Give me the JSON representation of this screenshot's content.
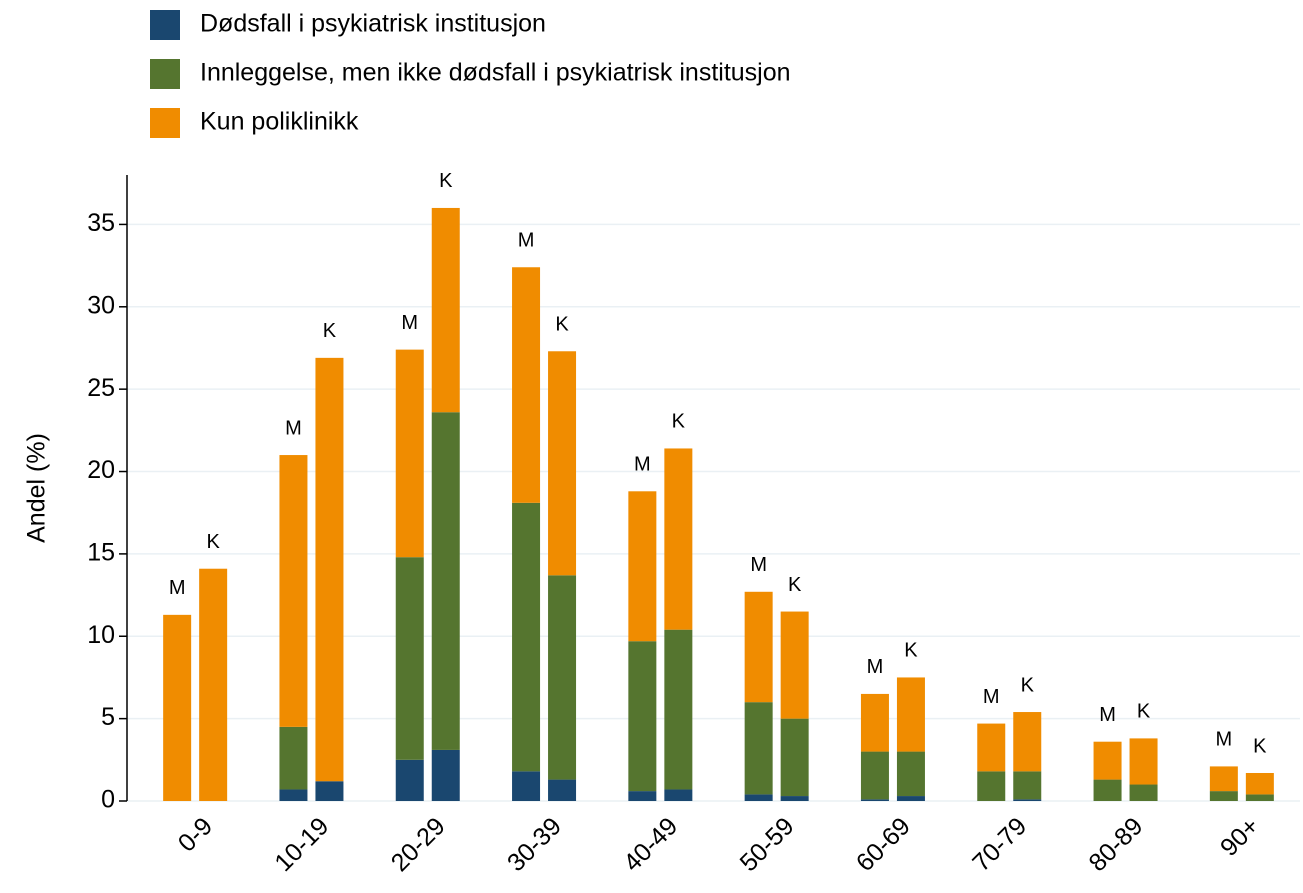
{
  "chart_data": {
    "type": "grouped_stacked_bar",
    "y_label": "Andel (%)",
    "categories": [
      "0-9",
      "10-19",
      "20-29",
      "30-39",
      "40-49",
      "50-59",
      "60-69",
      "70-79",
      "80-89",
      "90+"
    ],
    "groups": [
      "M",
      "K"
    ],
    "series": [
      {
        "name": "Dødsfall i psykiatrisk institusjon",
        "color": "#1a476f",
        "values": [
          [
            0,
            0
          ],
          [
            0.7,
            1.2
          ],
          [
            2.5,
            3.1
          ],
          [
            1.8,
            1.3
          ],
          [
            0.6,
            0.7
          ],
          [
            0.4,
            0.3
          ],
          [
            0.1,
            0.3
          ],
          [
            0,
            0.1
          ],
          [
            0,
            0
          ],
          [
            0,
            0
          ]
        ]
      },
      {
        "name": "Innleggelse, men ikke dødsfall i psykiatrisk institusjon",
        "color": "#55752f",
        "values": [
          [
            0,
            0
          ],
          [
            3.8,
            0
          ],
          [
            12.3,
            20.5
          ],
          [
            16.3,
            12.4
          ],
          [
            9.1,
            9.7
          ],
          [
            5.6,
            4.7
          ],
          [
            2.9,
            2.7
          ],
          [
            1.8,
            1.7
          ],
          [
            1.3,
            1.0
          ],
          [
            0.6,
            0.4
          ]
        ]
      },
      {
        "name": "Kun poliklinikk",
        "color": "#f08c00",
        "values": [
          [
            11.3,
            14.1
          ],
          [
            16.5,
            25.7
          ],
          [
            12.6,
            12.4
          ],
          [
            14.3,
            13.6
          ],
          [
            9.1,
            11.0
          ],
          [
            6.7,
            6.5
          ],
          [
            3.5,
            4.5
          ],
          [
            2.9,
            3.6
          ],
          [
            2.3,
            2.8
          ],
          [
            1.5,
            1.3
          ]
        ]
      }
    ],
    "ylim": [
      0,
      38
    ],
    "yticks": [
      0,
      5,
      10,
      15,
      20,
      25,
      30,
      35
    ],
    "grid": true
  }
}
